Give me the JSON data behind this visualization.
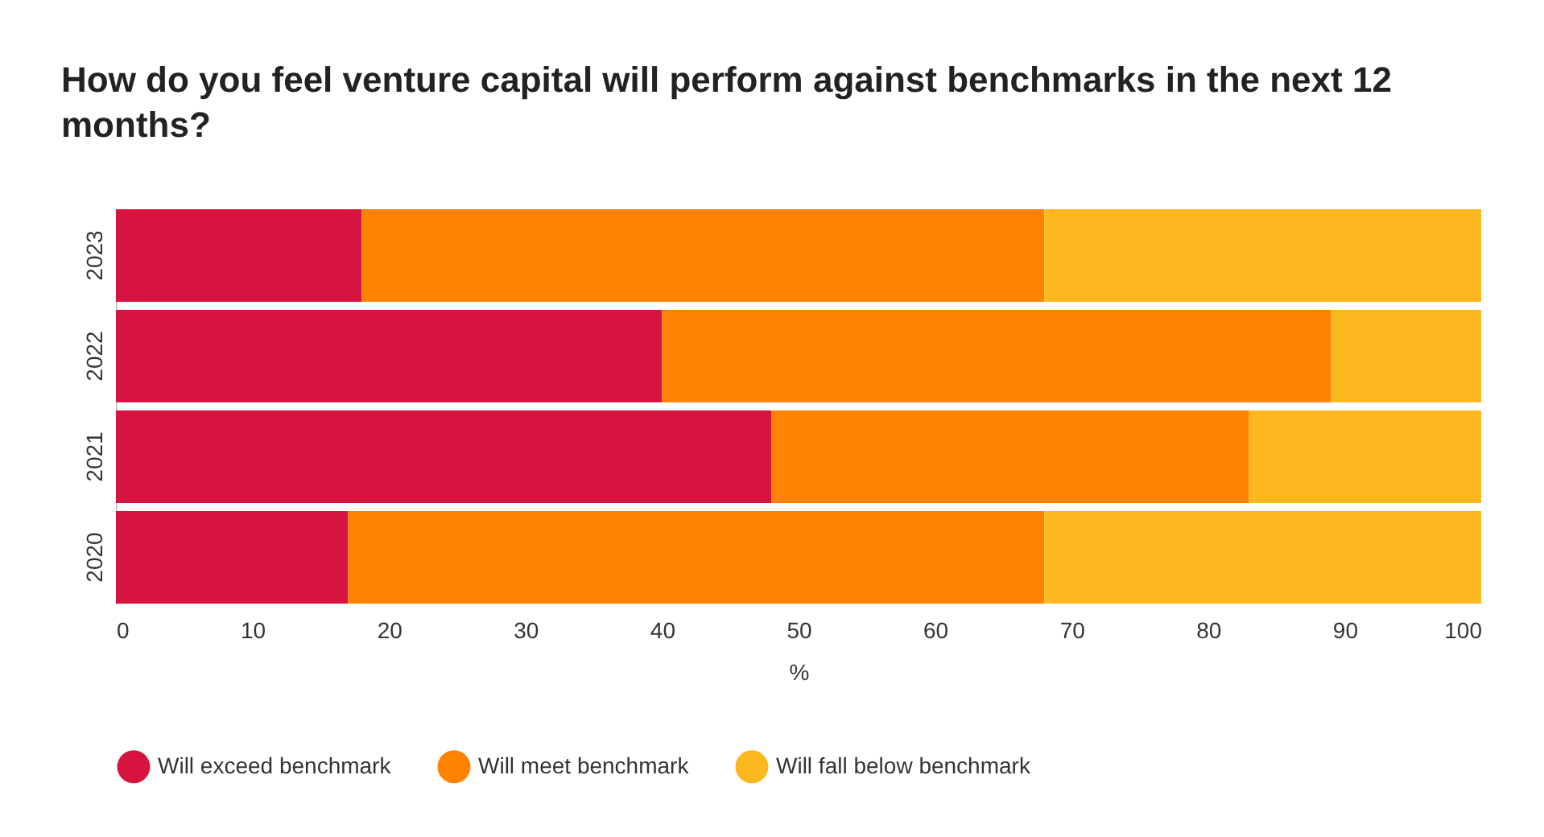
{
  "chart_data": {
    "type": "bar",
    "orientation": "horizontal",
    "stacked": true,
    "title": "How do you feel venture capital will perform against benchmarks in the next 12 months?",
    "xlabel": "%",
    "categories": [
      "2023",
      "2022",
      "2021",
      "2020"
    ],
    "series": [
      {
        "name": "Will exceed benchmark",
        "color": "#d7143f",
        "values": [
          18,
          40,
          48,
          17
        ]
      },
      {
        "name": "Will meet benchmark",
        "color": "#ff8200",
        "values": [
          50,
          49,
          35,
          51
        ]
      },
      {
        "name": "Will fall below benchmark",
        "color": "#fdb71f",
        "values": [
          32,
          11,
          17,
          32
        ]
      }
    ],
    "xlim": [
      0,
      100
    ],
    "xticks": [
      0,
      10,
      20,
      30,
      40,
      50,
      60,
      70,
      80,
      90,
      100
    ],
    "grid": false,
    "legend": "bottom"
  }
}
